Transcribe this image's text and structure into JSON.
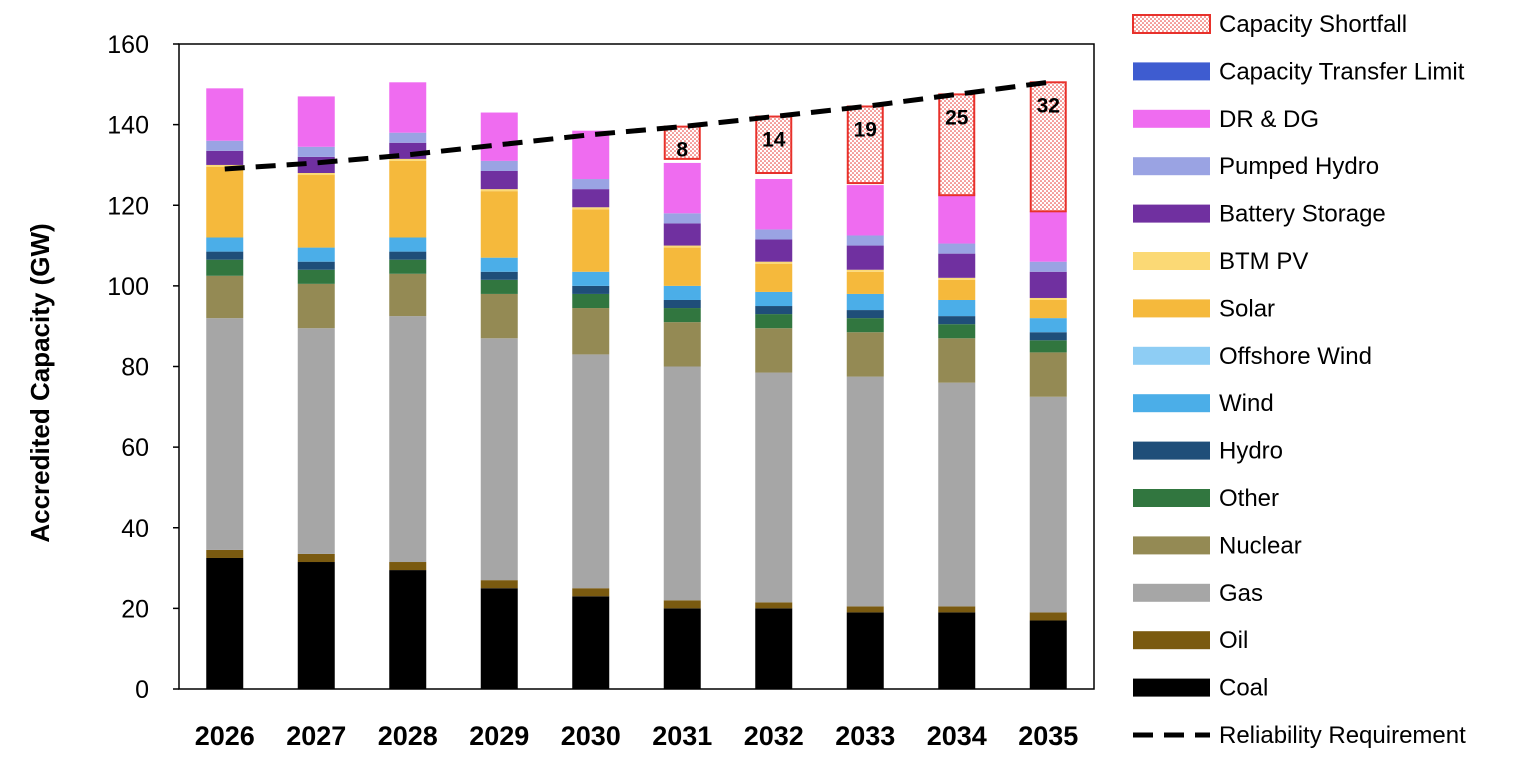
{
  "chart_data": {
    "type": "bar",
    "stacked": true,
    "title": "",
    "xlabel": "",
    "ylabel": "Accredited Capacity (GW)",
    "ylim": [
      0,
      160
    ],
    "yticks": [
      0,
      20,
      40,
      60,
      80,
      100,
      120,
      140,
      160
    ],
    "categories": [
      "2026",
      "2027",
      "2028",
      "2029",
      "2030",
      "2031",
      "2032",
      "2033",
      "2034",
      "2035"
    ],
    "series": [
      {
        "name": "Coal",
        "color": "#000000",
        "values": [
          32.5,
          31.5,
          29.5,
          25,
          23,
          20,
          20,
          19,
          19,
          17
        ]
      },
      {
        "name": "Oil",
        "color": "#7a5a10",
        "values": [
          2,
          2,
          2,
          2,
          2,
          2,
          1.5,
          1.5,
          1.5,
          2
        ]
      },
      {
        "name": "Gas",
        "color": "#a6a6a6",
        "values": [
          57.5,
          56,
          61,
          60,
          58,
          58,
          57,
          57,
          55.5,
          53.5
        ]
      },
      {
        "name": "Nuclear",
        "color": "#948a54",
        "values": [
          10.5,
          11,
          10.5,
          11,
          11.5,
          11,
          11,
          11,
          11,
          11
        ]
      },
      {
        "name": "Other",
        "color": "#31763f",
        "values": [
          4,
          3.5,
          3.5,
          3.5,
          3.5,
          3.5,
          3.5,
          3.5,
          3.5,
          3
        ]
      },
      {
        "name": "Hydro",
        "color": "#1f4e79",
        "values": [
          2,
          2,
          2,
          2,
          2,
          2,
          2,
          2,
          2,
          2
        ]
      },
      {
        "name": "Wind",
        "color": "#4baee8",
        "values": [
          3.5,
          3.5,
          3.5,
          3.5,
          3.5,
          3.5,
          3.5,
          4,
          4,
          3.5
        ]
      },
      {
        "name": "Offshore Wind",
        "color": "#8ecdf4",
        "values": [
          0,
          0,
          0,
          0,
          0,
          0,
          0,
          0,
          0,
          0
        ]
      },
      {
        "name": "Solar",
        "color": "#f5b93c",
        "values": [
          17.5,
          18,
          19,
          16.5,
          15.5,
          9.5,
          7,
          5.5,
          5,
          4.5
        ]
      },
      {
        "name": "BTM PV",
        "color": "#fbd975",
        "values": [
          0.5,
          0.5,
          0.5,
          0.5,
          0.5,
          0.5,
          0.5,
          0.5,
          0.5,
          0.5
        ]
      },
      {
        "name": "Battery Storage",
        "color": "#7030a0",
        "values": [
          3.5,
          4,
          4,
          4.5,
          4.5,
          5.5,
          5.5,
          6,
          6,
          6.5
        ]
      },
      {
        "name": "Pumped Hydro",
        "color": "#9aa3e3",
        "values": [
          2.5,
          2.5,
          2.5,
          2.5,
          2.5,
          2.5,
          2.5,
          2.5,
          2.5,
          2.5
        ]
      },
      {
        "name": "DR & DG",
        "color": "#ef6cf0",
        "values": [
          13,
          12.5,
          12.5,
          12,
          12,
          12.5,
          12.5,
          12.5,
          12.5,
          12.5
        ]
      },
      {
        "name": "Capacity Transfer Limit",
        "color": "#3e5cd0",
        "values": [
          0,
          0,
          0,
          0,
          0,
          0,
          0,
          0,
          0,
          0
        ]
      },
      {
        "name": "Capacity Shortfall",
        "color": "#ffe3e3",
        "border": "#e8312b",
        "values": [
          0,
          0,
          0,
          0,
          0,
          8,
          14,
          19,
          25,
          32
        ]
      }
    ],
    "shortfall_labels": [
      "",
      "",
      "",
      "",
      "",
      "8",
      "14",
      "19",
      "25",
      "32"
    ],
    "line": {
      "name": "Reliability Requirement",
      "style": "dashed",
      "color": "#000000",
      "values": [
        129,
        130.5,
        132.5,
        135,
        137.5,
        139.5,
        142,
        144.5,
        147.5,
        150.5
      ]
    },
    "legend_position": "right",
    "legend_order": [
      "Capacity Shortfall",
      "Capacity Transfer Limit",
      "DR & DG",
      "Pumped Hydro",
      "Battery Storage",
      "BTM PV",
      "Solar",
      "Offshore Wind",
      "Wind",
      "Hydro",
      "Other",
      "Nuclear",
      "Gas",
      "Oil",
      "Coal",
      "Reliability Requirement"
    ],
    "grid": false
  }
}
